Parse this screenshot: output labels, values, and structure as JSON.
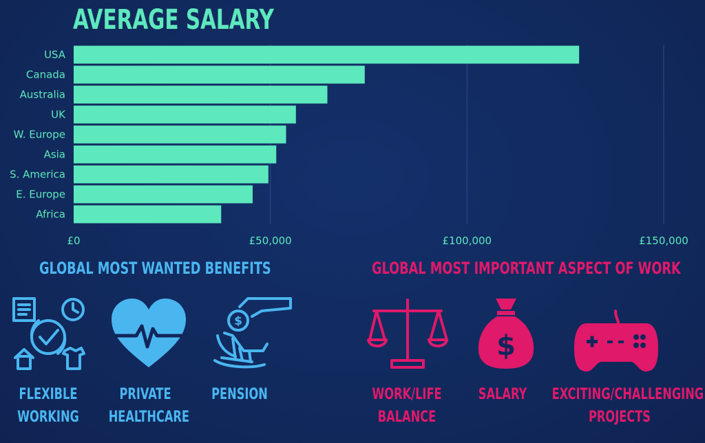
{
  "title": "AVERAGE SALARY",
  "chart_data": {
    "type": "bar",
    "orientation": "horizontal",
    "categories": [
      "USA",
      "Canada",
      "Australia",
      "UK",
      "W. Europe",
      "Asia",
      "S. America",
      "E. Europe",
      "Africa"
    ],
    "values": [
      128500,
      74000,
      64500,
      56500,
      54000,
      51500,
      49500,
      45500,
      37500
    ],
    "xlim": [
      0,
      150000
    ],
    "x_ticks": [
      0,
      50000,
      100000,
      150000
    ],
    "x_tick_labels": [
      "£0",
      "£50,000",
      "£100,000",
      "£150,000"
    ],
    "grid": true,
    "bar_color": "#5ee8bd"
  },
  "benefits": {
    "heading": "GLOBAL MOST WANTED BENEFITS",
    "color": "#4ab6f0",
    "items": [
      {
        "icon": "flexible-working-icon",
        "lines": [
          "FLEXIBLE",
          "WORKING"
        ]
      },
      {
        "icon": "heart-pulse-icon",
        "lines": [
          "PRIVATE",
          "HEALTHCARE"
        ]
      },
      {
        "icon": "pension-icon",
        "lines": [
          "PENSION"
        ]
      }
    ]
  },
  "aspects": {
    "heading": "GLOBAL MOST IMPORTANT ASPECT OF WORK",
    "color": "#e0196a",
    "items": [
      {
        "icon": "scales-icon",
        "lines": [
          "WORK/LIFE",
          "BALANCE"
        ]
      },
      {
        "icon": "money-bag-icon",
        "lines": [
          "SALARY"
        ]
      },
      {
        "icon": "gamepad-icon",
        "lines": [
          "EXCITING/CHALLENGING",
          "PROJECTS"
        ]
      }
    ]
  }
}
